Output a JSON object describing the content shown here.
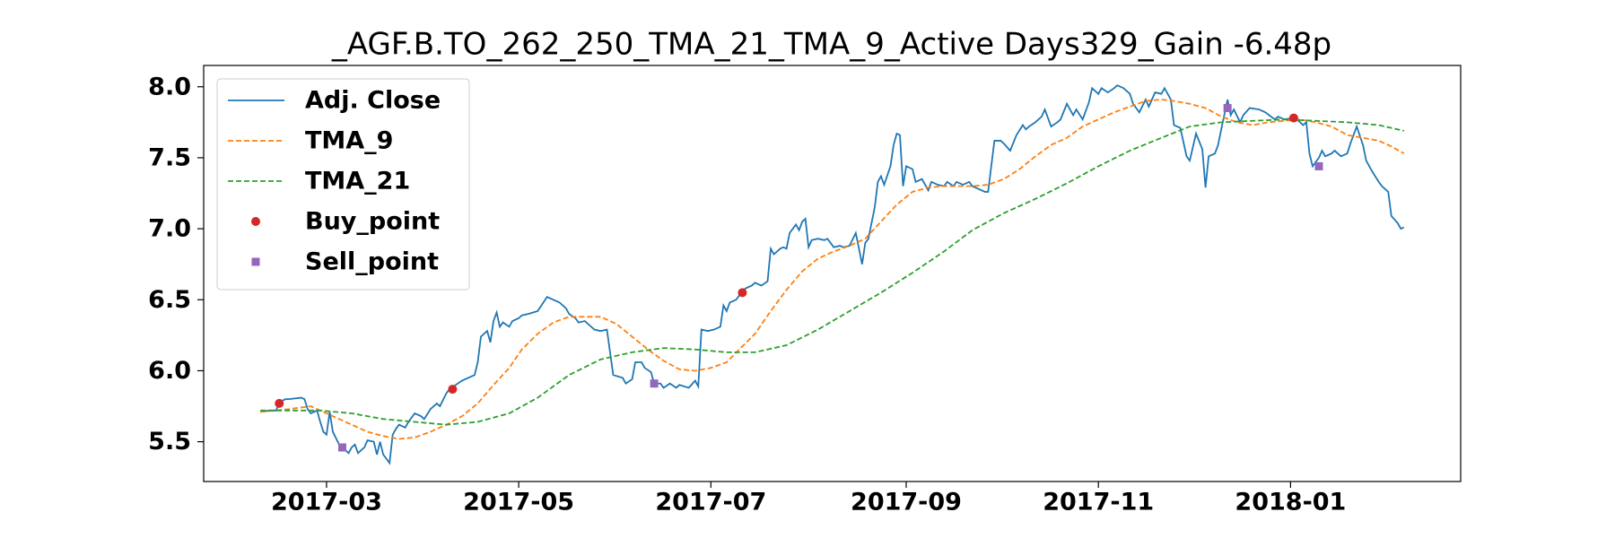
{
  "chart_data": {
    "type": "line",
    "title": "_AGF.B.TO_262_250_TMA_21_TMA_9_Active Days329_Gain  -6.48p",
    "xlim": [
      20,
      419
    ],
    "xticks": [
      {
        "value": 59,
        "label": "2017-03"
      },
      {
        "value": 120,
        "label": "2017-05"
      },
      {
        "value": 181,
        "label": "2017-07"
      },
      {
        "value": 243,
        "label": "2017-09"
      },
      {
        "value": 304,
        "label": "2017-11"
      },
      {
        "value": 365,
        "label": "2018-01"
      }
    ],
    "ylim": [
      5.22,
      8.15
    ],
    "yticks": [
      5.5,
      {
        "value": 6,
        "label": "6.0"
      },
      6.5,
      {
        "value": 7,
        "label": "7.0"
      },
      7.5,
      {
        "value": 8,
        "label": "8.0"
      }
    ],
    "legend": "upper left",
    "series": [
      {
        "name": "Adj. Close",
        "color": "#1f77b4",
        "style": "solid",
        "x": [
          38,
          41,
          43,
          44,
          46,
          47,
          51,
          52,
          53,
          54,
          56,
          57,
          58,
          59,
          60,
          61,
          63,
          64,
          66,
          67,
          68,
          69,
          71,
          72,
          74,
          75,
          76,
          77,
          79,
          80,
          81,
          82,
          84,
          85,
          87,
          89,
          90,
          92,
          94,
          95,
          97,
          98,
          100,
          102,
          103,
          106,
          107,
          108,
          110,
          111,
          112,
          113,
          114,
          115,
          117,
          118,
          120,
          121,
          123,
          126,
          129,
          131,
          133,
          135,
          136,
          138,
          139,
          141,
          143,
          144,
          146,
          148,
          149,
          150,
          153,
          154,
          156,
          157,
          159,
          160,
          162,
          163,
          165,
          166,
          168,
          170,
          171,
          174,
          176,
          177,
          178,
          180,
          182,
          184,
          185,
          186,
          187,
          189,
          190,
          192,
          194,
          195,
          197,
          199,
          200,
          201,
          203,
          204,
          205,
          206,
          208,
          209,
          210,
          211,
          212,
          213,
          215,
          217,
          218,
          220,
          222,
          223,
          225,
          227,
          228,
          229,
          230,
          231,
          233,
          234,
          235,
          236,
          238,
          239,
          240,
          241,
          242,
          243,
          245,
          246,
          248,
          250,
          251,
          253,
          255,
          256,
          258,
          259,
          261,
          263,
          264,
          266,
          268,
          269,
          271,
          273,
          274,
          276,
          278,
          280,
          281,
          282,
          284,
          286,
          287,
          289,
          291,
          292,
          294,
          296,
          297,
          299,
          301,
          302,
          304,
          305,
          307,
          309,
          310,
          312,
          314,
          315,
          317,
          319,
          320,
          322,
          324,
          325,
          327,
          328,
          330,
          332,
          333,
          335,
          337,
          338,
          339,
          341,
          342,
          343,
          345,
          346,
          347,
          349,
          350,
          352,
          355,
          357,
          360,
          361,
          363,
          366,
          367,
          369,
          370,
          371,
          372,
          374,
          375,
          376,
          378,
          379,
          381,
          383,
          384,
          386,
          388,
          389,
          391,
          393,
          394,
          396,
          397,
          399,
          400,
          401
        ],
        "values": [
          5.71,
          5.72,
          5.72,
          5.78,
          5.8,
          5.8,
          5.81,
          5.8,
          5.73,
          5.7,
          5.72,
          5.64,
          5.57,
          5.55,
          5.71,
          5.57,
          5.48,
          5.46,
          5.42,
          5.46,
          5.48,
          5.42,
          5.46,
          5.51,
          5.5,
          5.41,
          5.5,
          5.41,
          5.35,
          5.55,
          5.59,
          5.62,
          5.6,
          5.64,
          5.7,
          5.68,
          5.66,
          5.73,
          5.77,
          5.75,
          5.84,
          5.87,
          5.9,
          5.93,
          5.94,
          5.97,
          6.06,
          6.24,
          6.28,
          6.2,
          6.35,
          6.41,
          6.31,
          6.34,
          6.31,
          6.35,
          6.37,
          6.39,
          6.4,
          6.42,
          6.52,
          6.5,
          6.48,
          6.44,
          6.4,
          6.37,
          6.34,
          6.35,
          6.31,
          6.29,
          6.28,
          6.29,
          6.13,
          5.97,
          5.95,
          5.91,
          5.94,
          6.06,
          6.06,
          6.02,
          5.99,
          5.91,
          5.91,
          5.88,
          5.91,
          5.88,
          5.9,
          5.88,
          5.93,
          5.89,
          6.29,
          6.28,
          6.29,
          6.31,
          6.46,
          6.42,
          6.48,
          6.5,
          6.53,
          6.58,
          6.6,
          6.62,
          6.6,
          6.63,
          6.86,
          6.82,
          6.86,
          6.87,
          6.86,
          6.97,
          7.03,
          6.99,
          7.05,
          7.07,
          6.87,
          6.92,
          6.93,
          6.92,
          6.93,
          6.87,
          6.88,
          6.87,
          6.88,
          6.97,
          6.86,
          6.75,
          6.9,
          6.93,
          7.15,
          7.33,
          7.37,
          7.31,
          7.44,
          7.59,
          7.67,
          7.66,
          7.3,
          7.44,
          7.42,
          7.33,
          7.35,
          7.27,
          7.33,
          7.31,
          7.3,
          7.33,
          7.3,
          7.33,
          7.31,
          7.33,
          7.3,
          7.28,
          7.26,
          7.26,
          7.62,
          7.62,
          7.6,
          7.55,
          7.66,
          7.73,
          7.7,
          7.72,
          7.75,
          7.79,
          7.84,
          7.72,
          7.75,
          7.77,
          7.88,
          7.8,
          7.84,
          7.77,
          7.89,
          7.99,
          7.95,
          7.99,
          7.96,
          7.99,
          8.01,
          7.99,
          7.95,
          7.88,
          7.82,
          7.91,
          7.86,
          7.96,
          7.95,
          7.99,
          7.91,
          7.73,
          7.71,
          7.51,
          7.48,
          7.67,
          7.56,
          7.29,
          7.51,
          7.53,
          7.59,
          7.7,
          7.91,
          7.8,
          7.84,
          7.75,
          7.8,
          7.85,
          7.84,
          7.82,
          7.77,
          7.79,
          7.77,
          7.78,
          7.77,
          7.73,
          7.75,
          7.53,
          7.44,
          7.5,
          7.55,
          7.51,
          7.53,
          7.55,
          7.51,
          7.53,
          7.6,
          7.72,
          7.59,
          7.48,
          7.4,
          7.33,
          7.3,
          7.26,
          7.09,
          7.04,
          7.0,
          7.01
        ]
      },
      {
        "name": "TMA_9",
        "color": "#ff7f0e",
        "style": "dashed",
        "x": [
          38,
          47,
          54,
          57,
          61,
          67,
          72,
          77,
          82,
          87,
          92,
          97,
          102,
          107,
          112,
          117,
          121,
          126,
          131,
          136,
          141,
          146,
          151,
          156,
          161,
          166,
          171,
          176,
          181,
          186,
          190,
          195,
          200,
          205,
          210,
          215,
          220,
          225,
          230,
          235,
          240,
          245,
          250,
          255,
          259,
          264,
          269,
          274,
          279,
          284,
          289,
          294,
          299,
          304,
          309,
          314,
          319,
          324,
          328,
          333,
          338,
          343,
          348,
          353,
          358,
          363,
          368,
          373,
          378,
          383,
          388,
          393,
          397,
          401
        ],
        "values": [
          5.71,
          5.73,
          5.75,
          5.72,
          5.68,
          5.62,
          5.57,
          5.54,
          5.52,
          5.53,
          5.57,
          5.62,
          5.68,
          5.77,
          5.9,
          6.02,
          6.15,
          6.26,
          6.34,
          6.38,
          6.38,
          6.38,
          6.33,
          6.24,
          6.15,
          6.07,
          6.01,
          6.0,
          6.02,
          6.06,
          6.15,
          6.26,
          6.42,
          6.57,
          6.7,
          6.79,
          6.84,
          6.88,
          6.93,
          7.05,
          7.17,
          7.26,
          7.29,
          7.3,
          7.3,
          7.3,
          7.31,
          7.35,
          7.42,
          7.51,
          7.59,
          7.64,
          7.72,
          7.77,
          7.82,
          7.86,
          7.9,
          7.91,
          7.9,
          7.88,
          7.85,
          7.79,
          7.75,
          7.73,
          7.75,
          7.76,
          7.77,
          7.75,
          7.72,
          7.66,
          7.64,
          7.62,
          7.58,
          7.53
        ]
      },
      {
        "name": "TMA_21",
        "color": "#2ca02c",
        "style": "dashed",
        "x": [
          38,
          47,
          57,
          67,
          77,
          87,
          97,
          107,
          117,
          126,
          136,
          146,
          156,
          166,
          176,
          186,
          195,
          205,
          215,
          225,
          235,
          245,
          255,
          264,
          274,
          284,
          294,
          304,
          314,
          324,
          333,
          343,
          353,
          363,
          373,
          383,
          393,
          401
        ],
        "values": [
          5.72,
          5.72,
          5.72,
          5.7,
          5.66,
          5.64,
          5.62,
          5.64,
          5.7,
          5.81,
          5.97,
          6.08,
          6.13,
          6.16,
          6.15,
          6.13,
          6.13,
          6.18,
          6.29,
          6.42,
          6.55,
          6.69,
          6.84,
          6.99,
          7.11,
          7.21,
          7.32,
          7.44,
          7.55,
          7.64,
          7.72,
          7.75,
          7.76,
          7.77,
          7.76,
          7.75,
          7.73,
          7.69
        ]
      },
      {
        "name": "Buy_point",
        "color": "#d62728",
        "marker": "o",
        "x": [
          44,
          99,
          191,
          366
        ],
        "values": [
          5.77,
          5.87,
          6.55,
          7.78
        ]
      },
      {
        "name": "Sell_point",
        "color": "#9467bd",
        "marker": "s",
        "x": [
          64,
          163,
          345,
          374
        ],
        "values": [
          5.46,
          5.91,
          7.85,
          7.44
        ]
      }
    ]
  }
}
